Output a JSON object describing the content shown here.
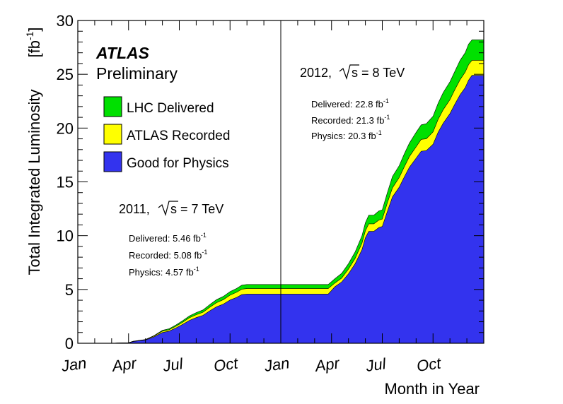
{
  "chart_data": {
    "type": "area",
    "title": "",
    "xlabel": "Month in Year",
    "ylabel": "Total Integrated Luminosity",
    "ylabel_unit": "[fb",
    "ylabel_unit_exp": "-1",
    "ylabel_unit_close": "]",
    "ylim": [
      0,
      30
    ],
    "xlim_months": [
      0,
      24
    ],
    "y_ticks": [
      "0",
      "5",
      "10",
      "15",
      "20",
      "25",
      "30"
    ],
    "x_tick_labels": [
      "Jan",
      "Apr",
      "Jul",
      "Oct",
      "Jan",
      "Apr",
      "Jul",
      "Oct"
    ],
    "x_tick_months": [
      0,
      3,
      6,
      9,
      12,
      15,
      18,
      21
    ],
    "year_divider_month": 12,
    "experiment": "ATLAS",
    "status": "Preliminary",
    "legend": [
      {
        "name": "LHC Delivered",
        "color": "#00e000"
      },
      {
        "name": "ATLAS Recorded",
        "color": "#ffff00"
      },
      {
        "name": "Good for Physics",
        "color": "#3333ee"
      }
    ],
    "annotations": {
      "y2011": {
        "title_pre": "2011,",
        "title_post": "s = 7 TeV",
        "delivered_label": "Delivered: 5.46 fb",
        "recorded_label": "Recorded: 5.08 fb",
        "physics_label": "Physics: 4.57 fb",
        "exp": "-1"
      },
      "y2012": {
        "title_pre": "2012,",
        "title_post": "s = 8 TeV",
        "delivered_label": "Delivered: 22.8 fb",
        "recorded_label": "Recorded: 21.3 fb",
        "physics_label": "Physics: 20.3 fb",
        "exp": "-1"
      }
    },
    "series": [
      {
        "name": "LHC Delivered",
        "x": [
          0,
          2.0,
          2.3,
          3.0,
          3.3,
          4.0,
          4.5,
          5.0,
          5.4,
          5.8,
          6.2,
          6.6,
          7.0,
          7.4,
          7.8,
          8.2,
          8.6,
          9.0,
          9.4,
          9.7,
          10.0,
          12.0,
          14.0,
          14.8,
          15.2,
          15.6,
          16.0,
          16.4,
          16.8,
          17.0,
          17.2,
          17.5,
          17.8,
          18.0,
          18.3,
          18.6,
          19.0,
          19.3,
          19.6,
          20.0,
          20.3,
          20.6,
          21.0,
          21.3,
          21.6,
          22.0,
          22.3,
          22.6,
          22.9,
          23.1,
          23.3,
          23.6,
          24.0
        ],
        "values": [
          0,
          0,
          0.02,
          0.05,
          0.2,
          0.35,
          0.7,
          1.2,
          1.35,
          1.7,
          2.1,
          2.55,
          2.85,
          3.1,
          3.6,
          4.05,
          4.35,
          4.8,
          5.1,
          5.4,
          5.46,
          5.46,
          5.46,
          5.46,
          6.0,
          6.5,
          7.4,
          8.5,
          10.0,
          11.2,
          11.9,
          11.9,
          12.3,
          12.4,
          14.0,
          15.5,
          16.5,
          17.6,
          18.6,
          19.6,
          20.3,
          20.4,
          21.1,
          22.3,
          23.3,
          24.3,
          25.3,
          26.3,
          27.0,
          27.8,
          28.2,
          28.2,
          28.2
        ]
      },
      {
        "name": "ATLAS Recorded",
        "x": [
          0,
          2.0,
          2.3,
          3.0,
          3.3,
          4.0,
          4.5,
          5.0,
          5.4,
          5.8,
          6.2,
          6.6,
          7.0,
          7.4,
          7.8,
          8.2,
          8.6,
          9.0,
          9.4,
          9.7,
          10.0,
          12.0,
          14.0,
          14.8,
          15.2,
          15.6,
          16.0,
          16.4,
          16.8,
          17.0,
          17.2,
          17.5,
          17.8,
          18.0,
          18.3,
          18.6,
          19.0,
          19.3,
          19.6,
          20.0,
          20.3,
          20.6,
          21.0,
          21.3,
          21.6,
          22.0,
          22.3,
          22.6,
          22.9,
          23.1,
          23.3,
          23.6,
          24.0
        ],
        "values": [
          0,
          0,
          0.02,
          0.05,
          0.19,
          0.33,
          0.66,
          1.12,
          1.26,
          1.58,
          1.95,
          2.37,
          2.65,
          2.88,
          3.35,
          3.77,
          4.05,
          4.47,
          4.75,
          5.03,
          5.08,
          5.08,
          5.08,
          5.08,
          5.6,
          6.05,
          6.9,
          7.9,
          9.3,
          10.45,
          11.1,
          11.1,
          11.45,
          11.55,
          13.05,
          14.45,
          15.4,
          16.4,
          17.35,
          18.25,
          18.95,
          19.0,
          19.65,
          20.8,
          21.7,
          22.65,
          23.6,
          24.5,
          25.2,
          25.9,
          26.3,
          26.3,
          26.3
        ]
      },
      {
        "name": "Good for Physics",
        "x": [
          0,
          2.0,
          2.3,
          3.0,
          3.3,
          4.0,
          4.5,
          5.0,
          5.4,
          5.8,
          6.2,
          6.6,
          7.0,
          7.4,
          7.8,
          8.2,
          8.6,
          9.0,
          9.4,
          9.7,
          10.0,
          12.0,
          14.0,
          14.8,
          15.2,
          15.6,
          16.0,
          16.4,
          16.8,
          17.0,
          17.2,
          17.5,
          17.8,
          18.0,
          18.3,
          18.6,
          19.0,
          19.3,
          19.6,
          20.0,
          20.3,
          20.6,
          21.0,
          21.3,
          21.6,
          22.0,
          22.3,
          22.6,
          22.9,
          23.1,
          23.3,
          23.6,
          24.0
        ],
        "values": [
          0,
          0,
          0.02,
          0.04,
          0.17,
          0.3,
          0.59,
          1.0,
          1.13,
          1.42,
          1.75,
          2.13,
          2.38,
          2.59,
          3.01,
          3.39,
          3.64,
          4.02,
          4.27,
          4.52,
          4.57,
          4.57,
          4.57,
          4.57,
          5.25,
          5.7,
          6.45,
          7.4,
          8.7,
          9.8,
          10.4,
          10.4,
          10.75,
          10.85,
          12.25,
          13.6,
          14.5,
          15.45,
          16.35,
          17.2,
          17.85,
          17.9,
          18.5,
          19.6,
          20.45,
          21.35,
          22.25,
          23.1,
          23.75,
          24.45,
          24.9,
          24.9,
          24.9
        ]
      }
    ]
  }
}
